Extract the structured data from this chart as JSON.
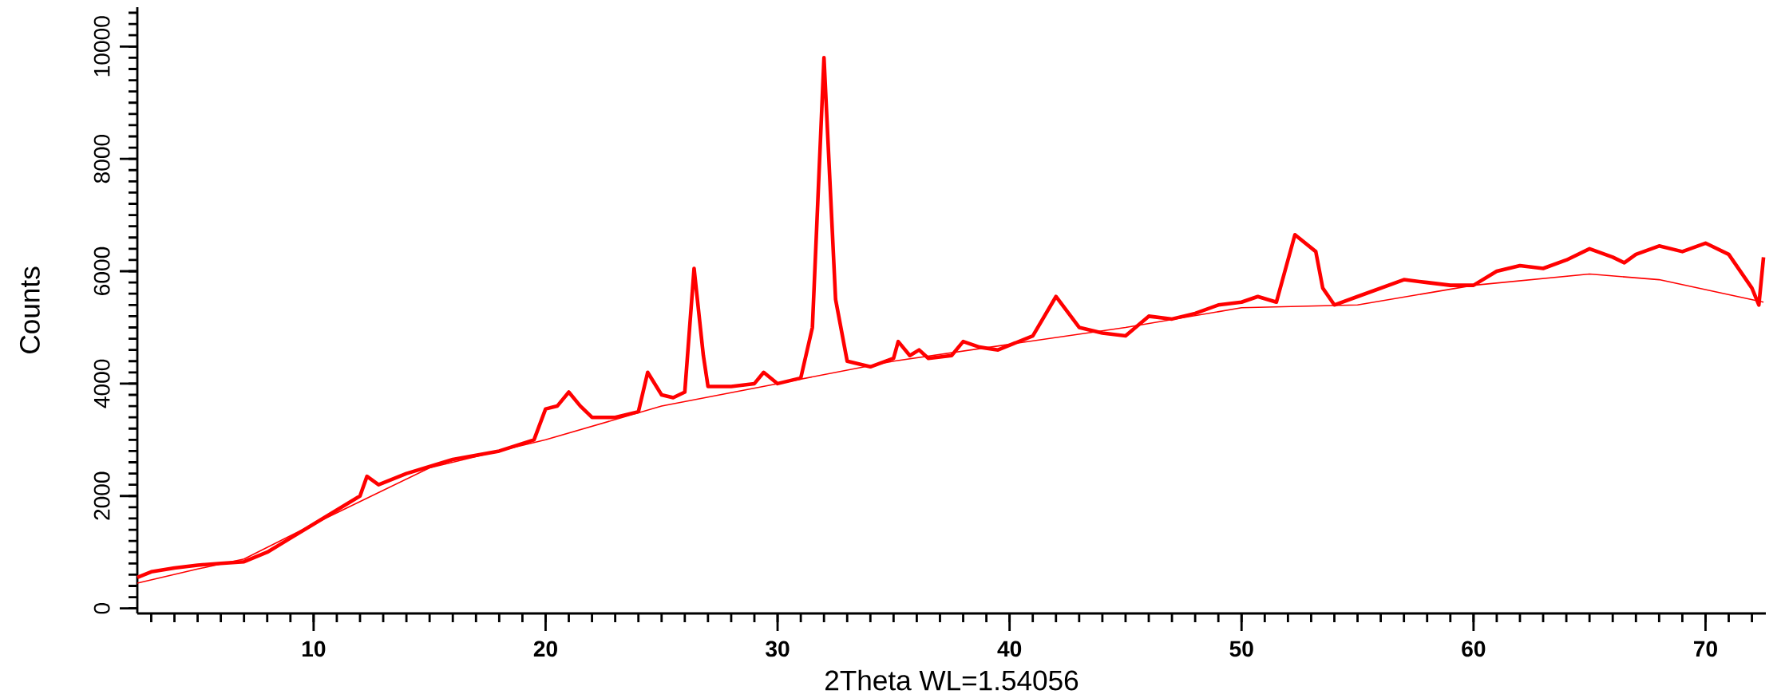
{
  "chart_data": {
    "type": "line",
    "xlabel": "2Theta WL=1.54056",
    "ylabel": "Counts",
    "xlim": [
      2.4,
      72.6
    ],
    "ylim": [
      -90,
      10700
    ],
    "xticks": [
      10,
      20,
      30,
      40,
      50,
      60,
      70
    ],
    "yticks": [
      0,
      2000,
      4000,
      6000,
      8000,
      10000
    ],
    "grid": false,
    "marker": "none",
    "series": [
      {
        "color": "#ff0000",
        "x": [
          2.4,
          3,
          4,
          5,
          6,
          7,
          8,
          9,
          10,
          11,
          12,
          12.3,
          12.8,
          14,
          16,
          18,
          19.5,
          20,
          20.5,
          21,
          21.5,
          22,
          23,
          23.5,
          24,
          24.4,
          25,
          25.5,
          26,
          26.4,
          26.8,
          27,
          28,
          29,
          29.4,
          30,
          31,
          31.5,
          32,
          32.5,
          33,
          34,
          35,
          35.2,
          35.7,
          36.1,
          36.5,
          37.5,
          38,
          38.7,
          39.5,
          41,
          42,
          43,
          44,
          45,
          46,
          47,
          48,
          49,
          50,
          50.7,
          51.5,
          52.3,
          53.2,
          53.5,
          54,
          55,
          56,
          57,
          58,
          59,
          60,
          61,
          62,
          63,
          64,
          65,
          66,
          66.5,
          67,
          68,
          69,
          70,
          71,
          72,
          72.3,
          72.5
        ],
        "values": [
          550,
          650,
          720,
          770,
          800,
          830,
          1000,
          1250,
          1500,
          1750,
          2000,
          2350,
          2200,
          2400,
          2650,
          2800,
          3000,
          3550,
          3600,
          3850,
          3600,
          3400,
          3400,
          3450,
          3500,
          4200,
          3800,
          3750,
          3850,
          6050,
          4500,
          3950,
          3950,
          4000,
          4200,
          4000,
          4100,
          5000,
          9800,
          5500,
          4400,
          4300,
          4450,
          4750,
          4500,
          4600,
          4450,
          4500,
          4750,
          4650,
          4600,
          4850,
          5550,
          5000,
          4900,
          4850,
          5200,
          5150,
          5250,
          5400,
          5450,
          5550,
          5450,
          6650,
          6350,
          5700,
          5400,
          5550,
          5700,
          5850,
          5800,
          5750,
          5750,
          6000,
          6100,
          6050,
          6200,
          6400,
          6250,
          6150,
          6300,
          6450,
          6350,
          6500,
          6300,
          5700,
          5400,
          6250
        ]
      },
      {
        "color": "#ff0000",
        "x": [
          2.4,
          5,
          7,
          10,
          12,
          15,
          20,
          25,
          30,
          35,
          40,
          45,
          50,
          55,
          60,
          65,
          68,
          72.5
        ],
        "values": [
          450,
          700,
          880,
          1500,
          1900,
          2500,
          3000,
          3600,
          4000,
          4400,
          4700,
          5000,
          5350,
          5400,
          5750,
          5950,
          5850,
          5450
        ]
      }
    ]
  }
}
